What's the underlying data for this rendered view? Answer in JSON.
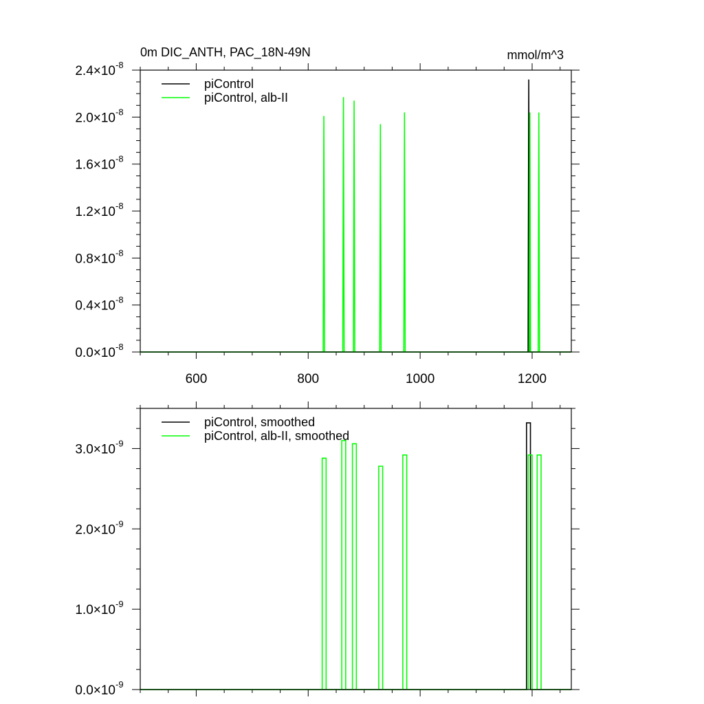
{
  "chart_data": [
    {
      "type": "line",
      "title": "0m DIC_ANTH, PAC_18N-49N",
      "units": "mmol/m^3",
      "xlim": [
        500,
        1270
      ],
      "ylim": [
        0,
        2.4e-08
      ],
      "x_ticks": [
        600,
        800,
        1000,
        1200
      ],
      "x_tick_labels": [
        "600",
        "800",
        "1000",
        "1200"
      ],
      "y_tick_mantissas": [
        "0.0",
        "0.4",
        "0.8",
        "1.2",
        "1.6",
        "2.0",
        "2.4"
      ],
      "y_tick_values": [
        0,
        4e-09,
        8e-09,
        1.2e-08,
        1.6e-08,
        2e-08,
        2.4e-08
      ],
      "y_tick_exponent": "-8",
      "legend_placement": "top-left",
      "series": [
        {
          "name": "piControl",
          "color": "#000000",
          "spikes": [
            {
              "x": 1194,
              "y": 2.32e-08
            }
          ]
        },
        {
          "name": "piControl, alb-II",
          "color": "#00ff00",
          "spikes": [
            {
              "x": 828,
              "y": 2.01e-08
            },
            {
              "x": 863,
              "y": 2.17e-08
            },
            {
              "x": 882,
              "y": 2.14e-08
            },
            {
              "x": 929,
              "y": 1.94e-08
            },
            {
              "x": 972,
              "y": 2.04e-08
            },
            {
              "x": 1196,
              "y": 2.04e-08
            },
            {
              "x": 1212,
              "y": 2.04e-08
            }
          ]
        }
      ]
    },
    {
      "type": "line",
      "title": "",
      "xlim": [
        500,
        1270
      ],
      "ylim": [
        0,
        3.5e-09
      ],
      "x_ticks": [
        600,
        800,
        1000,
        1200
      ],
      "y_tick_mantissas": [
        "0.0",
        "1.0",
        "2.0",
        "3.0"
      ],
      "y_tick_values": [
        0,
        1e-09,
        2e-09,
        3e-09
      ],
      "y_tick_exponent": "-9",
      "legend_placement": "top-left",
      "series": [
        {
          "name": "piControl, smoothed",
          "color": "#000000",
          "steps": [
            {
              "x0": 1190,
              "x1": 1197,
              "y": 3.32e-09
            }
          ]
        },
        {
          "name": "piControl, alb-II, smoothed",
          "color": "#00ff00",
          "steps": [
            {
              "x0": 825,
              "x1": 832,
              "y": 2.88e-09
            },
            {
              "x0": 860,
              "x1": 867,
              "y": 3.1e-09
            },
            {
              "x0": 879,
              "x1": 886,
              "y": 3.06e-09
            },
            {
              "x0": 926,
              "x1": 933,
              "y": 2.78e-09
            },
            {
              "x0": 969,
              "x1": 976,
              "y": 2.92e-09
            },
            {
              "x0": 1193,
              "x1": 1200,
              "y": 2.92e-09
            },
            {
              "x0": 1209,
              "x1": 1216,
              "y": 2.92e-09
            }
          ]
        }
      ]
    }
  ]
}
